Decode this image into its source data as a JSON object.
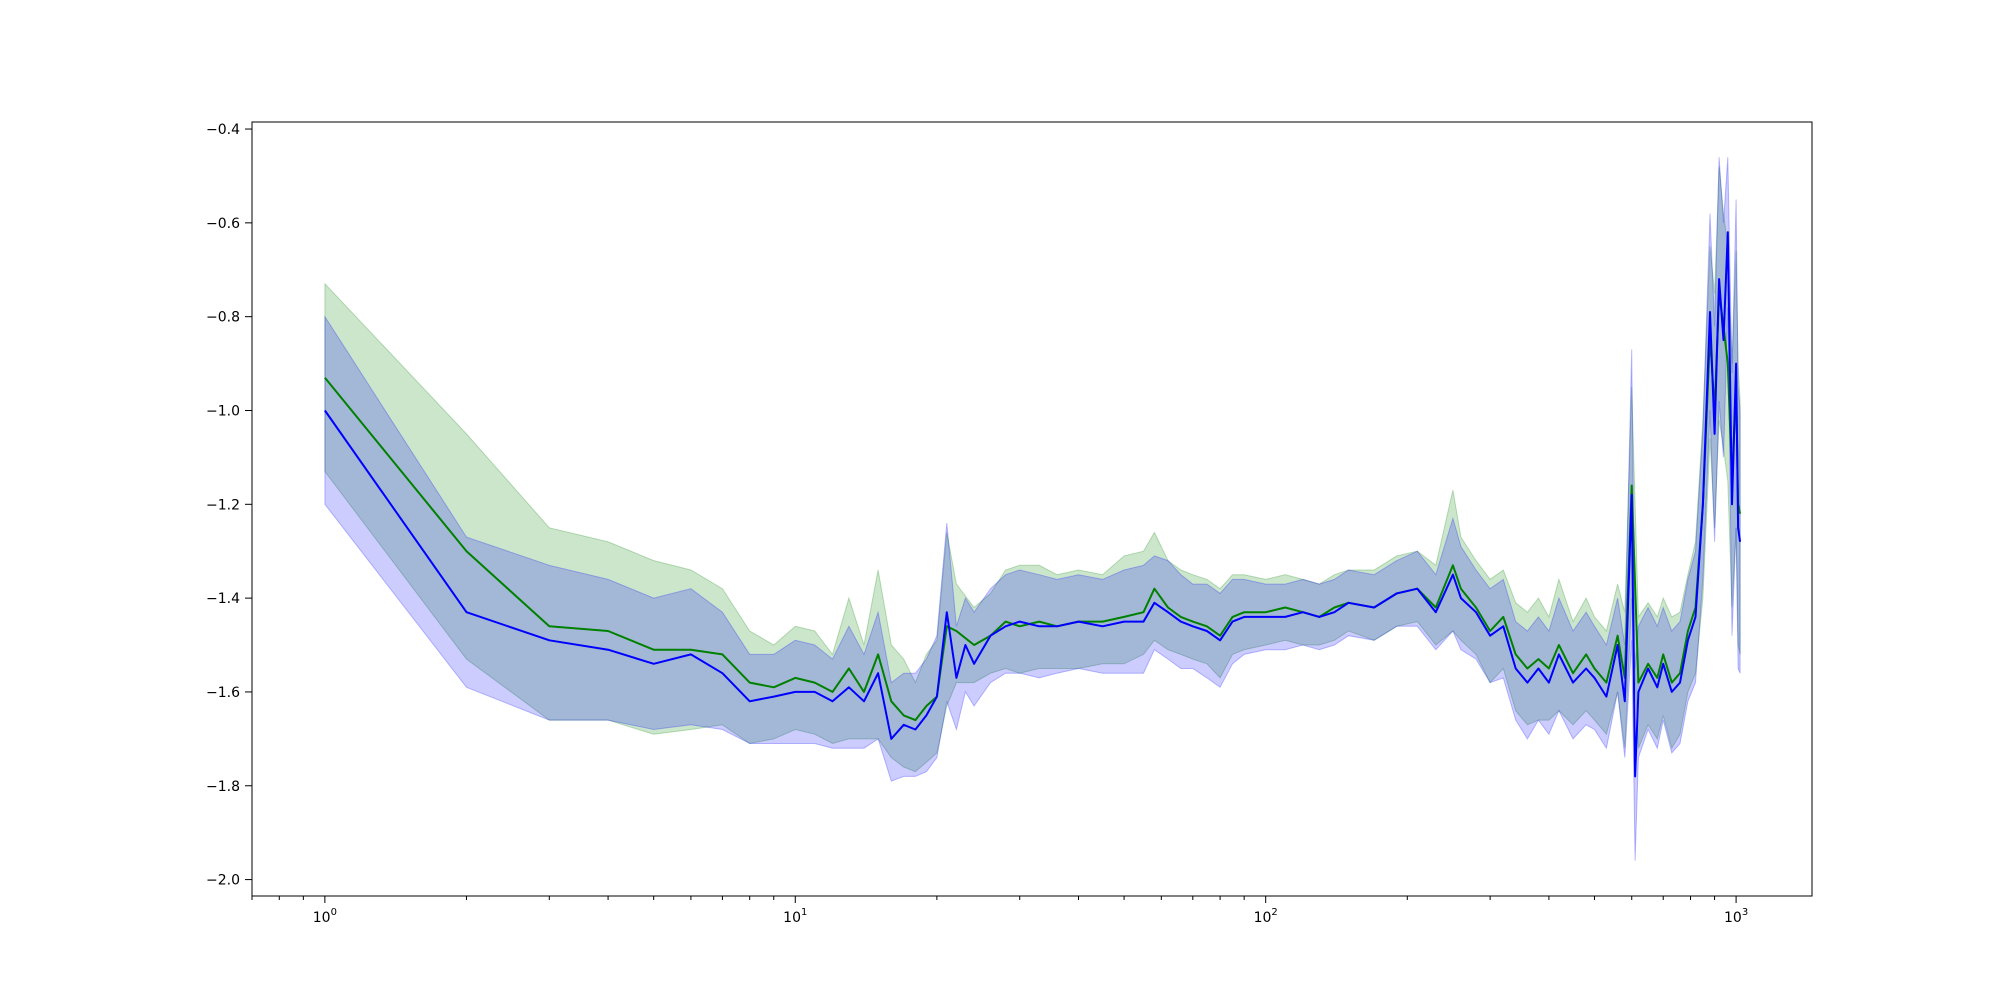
{
  "chart_data": {
    "type": "line",
    "title": "",
    "xlabel": "",
    "ylabel": "",
    "xscale": "log",
    "xlim": [
      0.7,
      1450
    ],
    "ylim": [
      -2.035,
      -0.385
    ],
    "grid": false,
    "legend": "none",
    "x_ticks": [
      {
        "value": 1,
        "base": "10",
        "exponent": "0"
      },
      {
        "value": 10,
        "base": "10",
        "exponent": "1"
      },
      {
        "value": 100,
        "base": "10",
        "exponent": "2"
      },
      {
        "value": 1000,
        "base": "10",
        "exponent": "3"
      }
    ],
    "y_ticks": [
      {
        "value": -0.4,
        "label": "−0.4"
      },
      {
        "value": -0.6,
        "label": "−0.6"
      },
      {
        "value": -0.8,
        "label": "−0.8"
      },
      {
        "value": -1.0,
        "label": "−1.0"
      },
      {
        "value": -1.2,
        "label": "−1.2"
      },
      {
        "value": -1.4,
        "label": "−1.4"
      },
      {
        "value": -1.6,
        "label": "−1.6"
      },
      {
        "value": -1.8,
        "label": "−1.8"
      },
      {
        "value": -2.0,
        "label": "−2.0"
      }
    ],
    "series": [
      {
        "color": "#008000",
        "band_color": "#008000",
        "band_opacity": 0.2,
        "x": [
          1,
          2,
          3,
          4,
          5,
          6,
          7,
          8,
          9,
          10,
          11,
          12,
          13,
          14,
          15,
          16,
          17,
          18,
          19,
          20,
          21,
          22,
          24,
          26,
          28,
          30,
          33,
          36,
          40,
          45,
          50,
          55,
          58,
          62,
          66,
          70,
          75,
          80,
          85,
          90,
          100,
          110,
          120,
          130,
          140,
          150,
          170,
          190,
          210,
          230,
          250,
          260,
          280,
          300,
          320,
          340,
          360,
          380,
          400,
          420,
          450,
          480,
          500,
          530,
          560,
          580,
          600,
          620,
          650,
          680,
          700,
          730,
          760,
          790,
          820,
          850,
          880,
          900,
          920,
          940,
          960,
          980,
          1000,
          1010,
          1020
        ],
        "y": [
          -0.93,
          -1.3,
          -1.46,
          -1.47,
          -1.51,
          -1.51,
          -1.52,
          -1.58,
          -1.59,
          -1.57,
          -1.58,
          -1.6,
          -1.55,
          -1.6,
          -1.52,
          -1.62,
          -1.65,
          -1.66,
          -1.63,
          -1.61,
          -1.46,
          -1.47,
          -1.5,
          -1.48,
          -1.45,
          -1.46,
          -1.45,
          -1.46,
          -1.45,
          -1.45,
          -1.44,
          -1.43,
          -1.38,
          -1.42,
          -1.44,
          -1.45,
          -1.46,
          -1.48,
          -1.44,
          -1.43,
          -1.43,
          -1.42,
          -1.43,
          -1.44,
          -1.42,
          -1.41,
          -1.42,
          -1.39,
          -1.38,
          -1.42,
          -1.33,
          -1.38,
          -1.42,
          -1.47,
          -1.44,
          -1.52,
          -1.55,
          -1.53,
          -1.55,
          -1.5,
          -1.56,
          -1.52,
          -1.55,
          -1.58,
          -1.48,
          -1.57,
          -1.16,
          -1.58,
          -1.54,
          -1.57,
          -1.52,
          -1.58,
          -1.56,
          -1.47,
          -1.42,
          -1.2,
          -0.84,
          -1.0,
          -0.75,
          -0.82,
          -0.9,
          -1.15,
          -0.95,
          -1.2,
          -1.22
        ],
        "upper": [
          -0.73,
          -1.05,
          -1.25,
          -1.28,
          -1.32,
          -1.34,
          -1.38,
          -1.47,
          -1.5,
          -1.46,
          -1.47,
          -1.52,
          -1.4,
          -1.5,
          -1.34,
          -1.5,
          -1.53,
          -1.58,
          -1.52,
          -1.49,
          -1.26,
          -1.37,
          -1.42,
          -1.39,
          -1.34,
          -1.33,
          -1.33,
          -1.35,
          -1.34,
          -1.35,
          -1.31,
          -1.3,
          -1.26,
          -1.32,
          -1.34,
          -1.35,
          -1.36,
          -1.38,
          -1.35,
          -1.35,
          -1.36,
          -1.35,
          -1.36,
          -1.37,
          -1.35,
          -1.34,
          -1.34,
          -1.31,
          -1.3,
          -1.33,
          -1.17,
          -1.27,
          -1.32,
          -1.36,
          -1.34,
          -1.41,
          -1.43,
          -1.4,
          -1.44,
          -1.36,
          -1.45,
          -1.4,
          -1.44,
          -1.47,
          -1.37,
          -1.43,
          -0.95,
          -1.44,
          -1.41,
          -1.44,
          -1.4,
          -1.44,
          -1.43,
          -1.35,
          -1.28,
          -1.02,
          -0.65,
          -0.75,
          -0.48,
          -0.58,
          -0.65,
          -0.9,
          -0.66,
          -0.9,
          -0.98
        ],
        "lower": [
          -1.13,
          -1.53,
          -1.66,
          -1.66,
          -1.69,
          -1.68,
          -1.67,
          -1.71,
          -1.7,
          -1.68,
          -1.69,
          -1.71,
          -1.7,
          -1.7,
          -1.7,
          -1.74,
          -1.76,
          -1.77,
          -1.75,
          -1.73,
          -1.63,
          -1.58,
          -1.58,
          -1.56,
          -1.55,
          -1.56,
          -1.55,
          -1.55,
          -1.55,
          -1.54,
          -1.54,
          -1.52,
          -1.49,
          -1.51,
          -1.52,
          -1.53,
          -1.54,
          -1.57,
          -1.52,
          -1.51,
          -1.5,
          -1.49,
          -1.5,
          -1.5,
          -1.49,
          -1.47,
          -1.49,
          -1.46,
          -1.45,
          -1.5,
          -1.47,
          -1.49,
          -1.52,
          -1.58,
          -1.55,
          -1.64,
          -1.67,
          -1.66,
          -1.66,
          -1.64,
          -1.67,
          -1.64,
          -1.66,
          -1.69,
          -1.6,
          -1.72,
          -1.4,
          -1.72,
          -1.67,
          -1.7,
          -1.65,
          -1.72,
          -1.69,
          -1.6,
          -1.56,
          -1.4,
          -1.06,
          -1.25,
          -1.02,
          -1.08,
          -1.15,
          -1.42,
          -1.25,
          -1.5,
          -1.52
        ]
      },
      {
        "color": "#0000ff",
        "band_color": "#0000ff",
        "band_opacity": 0.2,
        "x": [
          1,
          2,
          3,
          4,
          5,
          6,
          7,
          8,
          9,
          10,
          11,
          12,
          13,
          14,
          15,
          16,
          17,
          18,
          19,
          20,
          21,
          22,
          23,
          24,
          26,
          28,
          30,
          33,
          36,
          40,
          45,
          50,
          55,
          58,
          62,
          66,
          70,
          75,
          80,
          85,
          90,
          100,
          110,
          120,
          130,
          140,
          150,
          170,
          190,
          210,
          230,
          250,
          260,
          280,
          300,
          320,
          340,
          360,
          380,
          400,
          420,
          450,
          480,
          500,
          530,
          560,
          580,
          600,
          610,
          620,
          650,
          680,
          700,
          730,
          760,
          790,
          820,
          850,
          880,
          900,
          920,
          940,
          960,
          980,
          1000,
          1010,
          1020
        ],
        "y": [
          -1.0,
          -1.43,
          -1.49,
          -1.51,
          -1.54,
          -1.52,
          -1.56,
          -1.62,
          -1.61,
          -1.6,
          -1.6,
          -1.62,
          -1.59,
          -1.62,
          -1.56,
          -1.7,
          -1.67,
          -1.68,
          -1.65,
          -1.61,
          -1.43,
          -1.57,
          -1.5,
          -1.54,
          -1.48,
          -1.46,
          -1.45,
          -1.46,
          -1.46,
          -1.45,
          -1.46,
          -1.45,
          -1.45,
          -1.41,
          -1.43,
          -1.45,
          -1.46,
          -1.47,
          -1.49,
          -1.45,
          -1.44,
          -1.44,
          -1.44,
          -1.43,
          -1.44,
          -1.43,
          -1.41,
          -1.42,
          -1.39,
          -1.38,
          -1.43,
          -1.35,
          -1.4,
          -1.43,
          -1.48,
          -1.46,
          -1.55,
          -1.58,
          -1.55,
          -1.58,
          -1.52,
          -1.58,
          -1.55,
          -1.57,
          -1.61,
          -1.5,
          -1.62,
          -1.18,
          -1.78,
          -1.6,
          -1.55,
          -1.59,
          -1.54,
          -1.6,
          -1.58,
          -1.49,
          -1.44,
          -1.2,
          -0.79,
          -1.05,
          -0.72,
          -0.85,
          -0.62,
          -1.2,
          -0.9,
          -1.25,
          -1.28
        ],
        "upper": [
          -0.8,
          -1.27,
          -1.33,
          -1.36,
          -1.4,
          -1.38,
          -1.43,
          -1.52,
          -1.52,
          -1.49,
          -1.5,
          -1.53,
          -1.46,
          -1.52,
          -1.43,
          -1.58,
          -1.56,
          -1.56,
          -1.53,
          -1.48,
          -1.24,
          -1.46,
          -1.4,
          -1.43,
          -1.38,
          -1.35,
          -1.34,
          -1.35,
          -1.36,
          -1.35,
          -1.36,
          -1.34,
          -1.33,
          -1.31,
          -1.32,
          -1.35,
          -1.37,
          -1.37,
          -1.39,
          -1.36,
          -1.36,
          -1.37,
          -1.37,
          -1.36,
          -1.37,
          -1.36,
          -1.34,
          -1.35,
          -1.32,
          -1.3,
          -1.35,
          -1.23,
          -1.29,
          -1.34,
          -1.38,
          -1.36,
          -1.45,
          -1.47,
          -1.44,
          -1.47,
          -1.4,
          -1.47,
          -1.43,
          -1.46,
          -1.5,
          -1.4,
          -1.5,
          -0.87,
          -1.55,
          -1.46,
          -1.42,
          -1.46,
          -1.42,
          -1.47,
          -1.45,
          -1.36,
          -1.3,
          -1.04,
          -0.58,
          -0.82,
          -0.46,
          -0.6,
          -0.46,
          -0.92,
          -0.55,
          -0.95,
          -1.0
        ],
        "lower": [
          -1.2,
          -1.59,
          -1.66,
          -1.66,
          -1.68,
          -1.67,
          -1.68,
          -1.71,
          -1.71,
          -1.71,
          -1.71,
          -1.72,
          -1.72,
          -1.72,
          -1.7,
          -1.79,
          -1.78,
          -1.78,
          -1.77,
          -1.74,
          -1.62,
          -1.68,
          -1.6,
          -1.63,
          -1.58,
          -1.56,
          -1.56,
          -1.57,
          -1.56,
          -1.55,
          -1.56,
          -1.56,
          -1.56,
          -1.51,
          -1.53,
          -1.55,
          -1.55,
          -1.57,
          -1.59,
          -1.54,
          -1.52,
          -1.51,
          -1.51,
          -1.5,
          -1.51,
          -1.5,
          -1.48,
          -1.49,
          -1.46,
          -1.46,
          -1.51,
          -1.47,
          -1.51,
          -1.53,
          -1.58,
          -1.57,
          -1.66,
          -1.7,
          -1.66,
          -1.69,
          -1.64,
          -1.7,
          -1.67,
          -1.68,
          -1.72,
          -1.6,
          -1.74,
          -1.49,
          -1.96,
          -1.74,
          -1.68,
          -1.72,
          -1.66,
          -1.73,
          -1.71,
          -1.62,
          -1.58,
          -1.36,
          -1.0,
          -1.28,
          -0.98,
          -1.1,
          -0.78,
          -1.48,
          -1.25,
          -1.55,
          -1.56
        ]
      }
    ]
  }
}
